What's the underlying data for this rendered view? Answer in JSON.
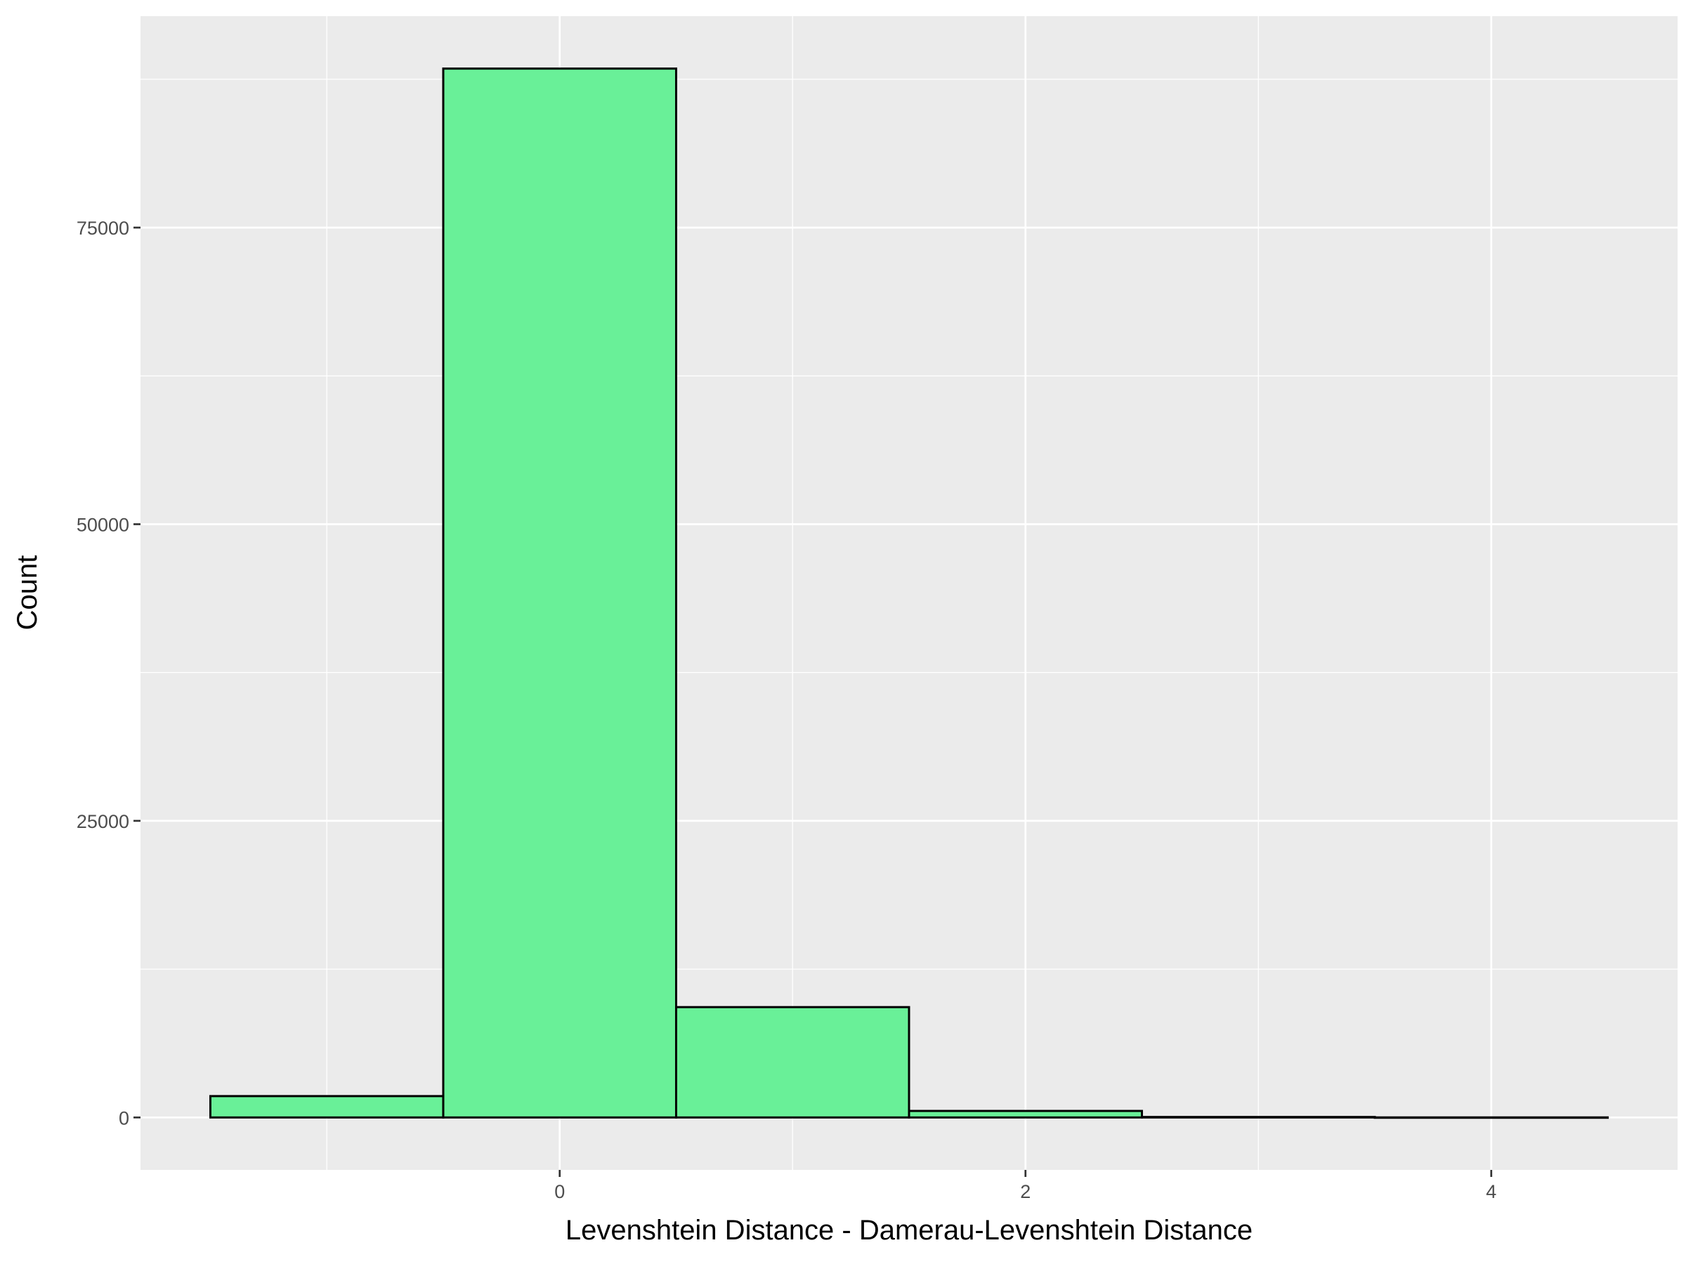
{
  "chart_data": {
    "type": "bar",
    "subtype": "histogram",
    "title": "",
    "xlabel": "Levenshtein Distance - Damerau-Levenshtein Distance",
    "ylabel": "Count",
    "bin_width": 1,
    "bins": [
      {
        "center": -1,
        "count": 1800
      },
      {
        "center": 0,
        "count": 88400
      },
      {
        "center": 1,
        "count": 9300
      },
      {
        "center": 2,
        "count": 550
      },
      {
        "center": 3,
        "count": 40
      },
      {
        "center": 4,
        "count": 5
      }
    ],
    "xlim": [
      -1.8,
      4.8
    ],
    "ylim": [
      -4420,
      92820
    ],
    "x_ticks": [
      0,
      2,
      4
    ],
    "x_tick_labels": [
      "0",
      "2",
      "4"
    ],
    "x_minor_ticks": [
      -1,
      1,
      3
    ],
    "y_ticks": [
      0,
      25000,
      50000,
      75000
    ],
    "y_tick_labels": [
      "0",
      "25000",
      "50000",
      "75000"
    ],
    "y_minor_ticks": [
      12500,
      37500,
      62500,
      87500
    ],
    "grid": true,
    "legend": "none",
    "colors": {
      "bar_fill": "#69f098",
      "bar_stroke": "#000000",
      "panel_background": "#ebebeb",
      "grid": "#ffffff"
    }
  }
}
